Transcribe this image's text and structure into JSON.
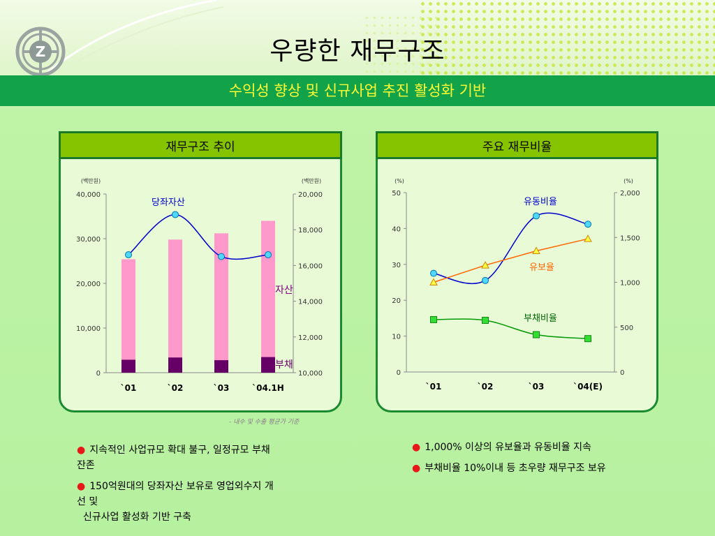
{
  "header": {
    "title": "우량한 재무구조",
    "subtitle": "수익성 향상 및 신규사업 추진 활성화 기반"
  },
  "colors": {
    "band": "#11a24a",
    "subtitle": "#ffff33",
    "panel_head": "#86c400",
    "panel_border": "#1a8a30",
    "bar_asset": "#ff99cc",
    "bar_debt": "#660066",
    "line_current_asset": "#0000cc",
    "line_liquidity": "#0000cc",
    "line_reserve": "#ff6600",
    "line_debt": "#009900"
  },
  "left_panel": {
    "heading": "재무구조 추이",
    "note": "- 내수 및 수출 평균가 기준",
    "labels": {
      "current_assets": "당좌자산",
      "assets": "자산",
      "debt": "부채"
    }
  },
  "right_panel": {
    "heading": "주요 재무비율",
    "labels": {
      "liquidity": "유동비율",
      "reserve": "유보율",
      "debt_ratio": "부채비율"
    }
  },
  "chart_data": [
    {
      "type": "bar",
      "title": "재무구조 추이",
      "categories": [
        "`01",
        "`02",
        "`03",
        "`04.1H"
      ],
      "y_left": {
        "unit": "(백만원)",
        "range": [
          0,
          40000
        ],
        "ticks": [
          0,
          10000,
          20000,
          30000,
          40000
        ],
        "tick_labels": [
          "0",
          "10,000",
          "20,000",
          "30,000",
          "40,000"
        ]
      },
      "y_right": {
        "unit": "(백만원)",
        "range": [
          10000,
          20000
        ],
        "ticks": [
          10000,
          12000,
          14000,
          16000,
          18000,
          20000
        ],
        "tick_labels": [
          "10,000",
          "12,000",
          "14,000",
          "16,000",
          "18,000",
          "20,000"
        ]
      },
      "series": [
        {
          "name": "자산",
          "type": "bar",
          "axis": "left",
          "values": [
            25400,
            29800,
            31200,
            34000
          ]
        },
        {
          "name": "부채",
          "type": "bar",
          "axis": "left",
          "values": [
            2900,
            3400,
            2800,
            3500
          ]
        },
        {
          "name": "당좌자산",
          "type": "line",
          "axis": "right",
          "values": [
            16600,
            18850,
            16500,
            16600
          ]
        }
      ],
      "grid": false
    },
    {
      "type": "line",
      "title": "주요 재무비율",
      "categories": [
        "`01",
        "`02",
        "`03",
        "`04(E)"
      ],
      "y_left": {
        "unit": "(%)",
        "range": [
          0,
          50
        ],
        "ticks": [
          0,
          10,
          20,
          30,
          40,
          50
        ],
        "tick_labels": [
          "0",
          "10",
          "20",
          "30",
          "40",
          "50"
        ]
      },
      "y_right": {
        "unit": "(%)",
        "range": [
          0,
          2000
        ],
        "ticks": [
          0,
          500,
          1000,
          1500,
          2000
        ],
        "tick_labels": [
          "0",
          "500",
          "1,000",
          "1,500",
          "2,000"
        ]
      },
      "series": [
        {
          "name": "유동비율",
          "axis": "left",
          "values": [
            27.5,
            25.5,
            43.5,
            41.2
          ]
        },
        {
          "name": "유보율",
          "axis": "right",
          "values": [
            1000,
            1190,
            1350,
            1485
          ]
        },
        {
          "name": "부채비율",
          "axis": "left",
          "values": [
            14.6,
            14.4,
            10.4,
            9.3
          ]
        }
      ],
      "grid": false
    }
  ],
  "bullets_left": [
    {
      "lines": [
        "지속적인 사업규모 확대 불구, 일정규모 부채",
        "잔존"
      ]
    },
    {
      "lines": [
        "150억원대의 당좌자산 보유로 영업외수지 개",
        "선 및",
        "  신규사업 활성화 기반 구축"
      ]
    }
  ],
  "bullets_right": [
    {
      "lines": [
        "1,000% 이상의 유보율과 유동비율 지속"
      ]
    },
    {
      "lines": [
        "부채비율 10%이내 등 초우량 재무구조 보유"
      ]
    }
  ]
}
